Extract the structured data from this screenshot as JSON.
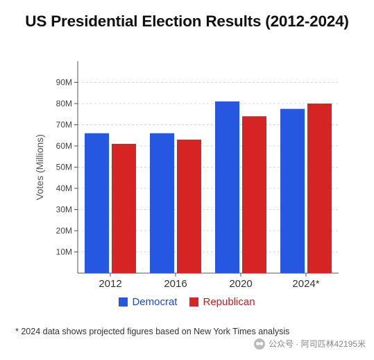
{
  "title": "US Presidential Election Results (2012-2024)",
  "footnote": "* 2024 data shows projected figures based on New York Times analysis",
  "watermark": "公众号 · 阿司匹林42195米",
  "colors": {
    "democrat": "#2557e0",
    "republican": "#d62323"
  },
  "chart_data": {
    "type": "bar",
    "categories": [
      "2012",
      "2016",
      "2020",
      "2024*"
    ],
    "series": [
      {
        "name": "Democrat",
        "values": [
          66,
          66,
          81,
          77.5
        ],
        "color": "#2557e0"
      },
      {
        "name": "Republican",
        "values": [
          61,
          63,
          74,
          80
        ],
        "color": "#d62323"
      }
    ],
    "ylabel": "Votes (Millions)",
    "yticks": [
      10,
      20,
      30,
      40,
      50,
      60,
      70,
      80,
      90
    ],
    "ytick_labels": [
      "10M",
      "20M",
      "30M",
      "40M",
      "50M",
      "60M",
      "70M",
      "80M",
      "90M"
    ],
    "ylim": [
      0,
      100
    ],
    "grid": true,
    "legend_position": "bottom"
  }
}
